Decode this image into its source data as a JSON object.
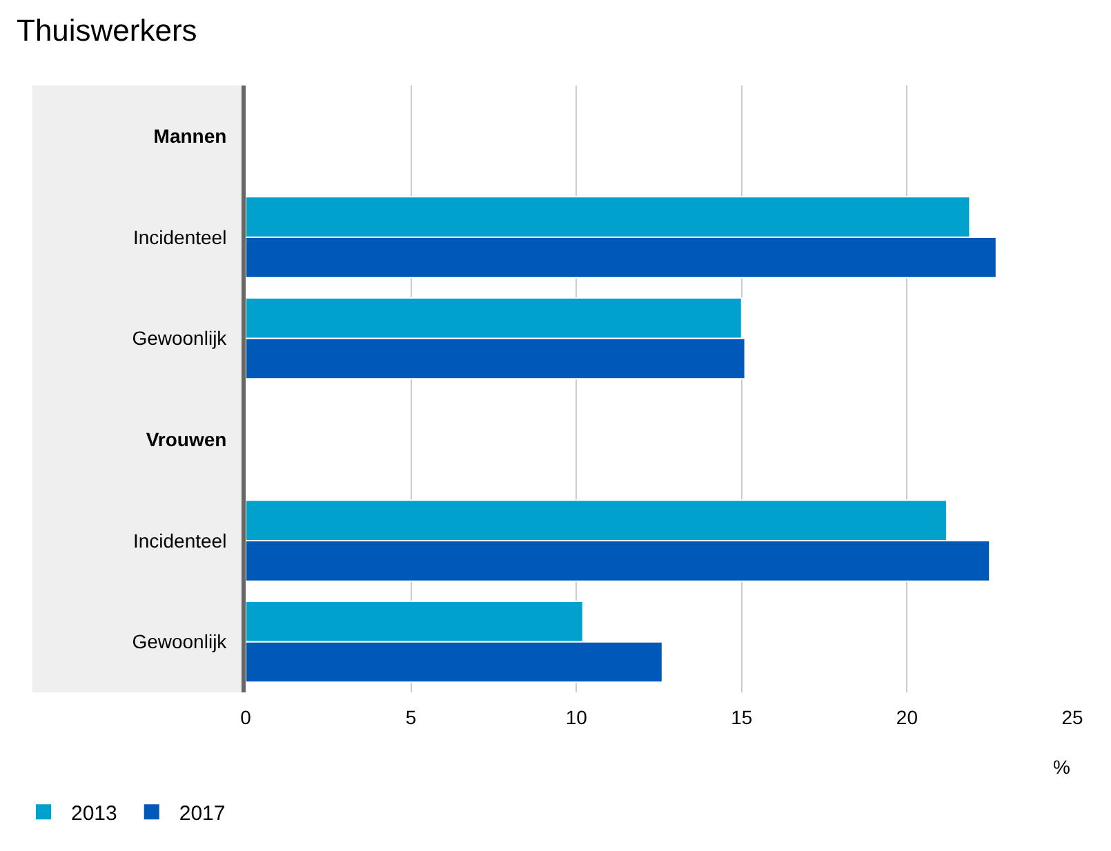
{
  "chart_data": {
    "type": "bar",
    "title": "Thuiswerkers",
    "orientation": "horizontal",
    "categories": [
      "Mannen",
      "Incidenteel",
      "Gewoonlijk",
      "Vrouwen",
      "Incidenteel",
      "Gewoonlijk"
    ],
    "series": [
      {
        "name": "2013",
        "color": "#00a1cd",
        "values": [
          null,
          21.9,
          15.0,
          null,
          21.2,
          10.2
        ]
      },
      {
        "name": "2017",
        "color": "#0058b8",
        "values": [
          null,
          22.7,
          15.1,
          null,
          22.5,
          12.6
        ]
      }
    ],
    "xlabel": "%",
    "xlim": [
      0,
      25
    ],
    "xticks": [
      0,
      5,
      10,
      15,
      20,
      25
    ],
    "grid": "x",
    "legend": "bottom left"
  }
}
